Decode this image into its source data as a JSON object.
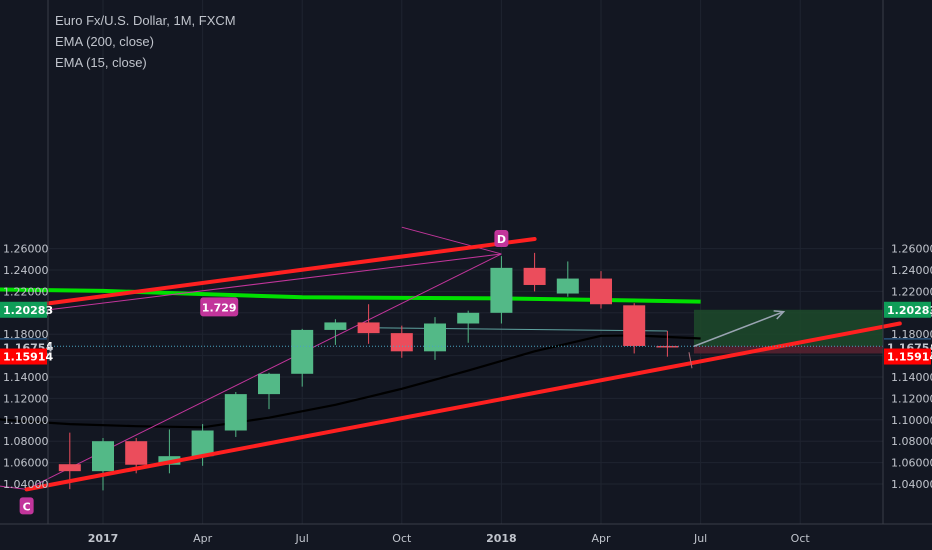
{
  "legend": {
    "title": "Euro Fx/U.S. Dollar, 1M, FXCM",
    "ema200": "EMA (200, close)",
    "ema15": "EMA (15, close)"
  },
  "colors": {
    "background": "#131722",
    "up": "#53b987",
    "down": "#eb4d5c",
    "trendline": "#ff2020",
    "ema200": "#00e000",
    "ema15": "#000000",
    "pattern": "#c2359b",
    "price_current": "#2a5c8a",
    "price_green": "#0f9d58",
    "price_red": "#ff0000"
  },
  "chart_data": {
    "type": "candlestick",
    "y_ticks": [
      "1.04000",
      "1.06000",
      "1.08000",
      "1.10000",
      "1.12000",
      "1.14000",
      "1.16000",
      "1.18000",
      "1.20000",
      "1.22000",
      "1.24000",
      "1.26000"
    ],
    "ylim": [
      1.0,
      1.275
    ],
    "x_ticks": [
      {
        "label": "2017",
        "month": 0,
        "bold": true
      },
      {
        "label": "Apr",
        "month": 3
      },
      {
        "label": "Jul",
        "month": 6
      },
      {
        "label": "Oct",
        "month": 9
      },
      {
        "label": "2018",
        "month": 12,
        "bold": true
      },
      {
        "label": "Apr",
        "month": 15
      },
      {
        "label": "Jul",
        "month": 18
      },
      {
        "label": "Oct",
        "month": 21
      }
    ],
    "candles": [
      {
        "month": -1,
        "open": 1.0585,
        "high": 1.088,
        "low": 1.0352,
        "close": 1.052
      },
      {
        "month": 0,
        "open": 1.052,
        "high": 1.083,
        "low": 1.034,
        "close": 1.08
      },
      {
        "month": 1,
        "open": 1.08,
        "high": 1.083,
        "low": 1.05,
        "close": 1.058
      },
      {
        "month": 2,
        "open": 1.058,
        "high": 1.091,
        "low": 1.05,
        "close": 1.066
      },
      {
        "month": 3,
        "open": 1.066,
        "high": 1.096,
        "low": 1.057,
        "close": 1.09
      },
      {
        "month": 4,
        "open": 1.09,
        "high": 1.126,
        "low": 1.084,
        "close": 1.124
      },
      {
        "month": 5,
        "open": 1.124,
        "high": 1.144,
        "low": 1.11,
        "close": 1.143
      },
      {
        "month": 6,
        "open": 1.143,
        "high": 1.185,
        "low": 1.131,
        "close": 1.184
      },
      {
        "month": 7,
        "open": 1.184,
        "high": 1.194,
        "low": 1.17,
        "close": 1.191
      },
      {
        "month": 8,
        "open": 1.191,
        "high": 1.208,
        "low": 1.171,
        "close": 1.181
      },
      {
        "month": 9,
        "open": 1.181,
        "high": 1.188,
        "low": 1.158,
        "close": 1.164
      },
      {
        "month": 10,
        "open": 1.164,
        "high": 1.196,
        "low": 1.156,
        "close": 1.19
      },
      {
        "month": 11,
        "open": 1.19,
        "high": 1.202,
        "low": 1.172,
        "close": 1.2
      },
      {
        "month": 12,
        "open": 1.2,
        "high": 1.253,
        "low": 1.19,
        "close": 1.242
      },
      {
        "month": 13,
        "open": 1.242,
        "high": 1.256,
        "low": 1.22,
        "close": 1.226
      },
      {
        "month": 14,
        "open": 1.218,
        "high": 1.248,
        "low": 1.215,
        "close": 1.232
      },
      {
        "month": 15,
        "open": 1.232,
        "high": 1.239,
        "low": 1.204,
        "close": 1.208
      },
      {
        "month": 16,
        "open": 1.207,
        "high": 1.209,
        "low": 1.162,
        "close": 1.169
      },
      {
        "month": 17,
        "open": 1.169,
        "high": 1.183,
        "low": 1.159,
        "close": 1.1687
      }
    ],
    "ema200": [
      [
        -5,
        1.2225
      ],
      [
        0,
        1.2205
      ],
      [
        6,
        1.2145
      ],
      [
        12,
        1.2135
      ],
      [
        18,
        1.2105
      ]
    ],
    "ema15": [
      [
        -5,
        1.108
      ],
      [
        -3,
        1.1
      ],
      [
        -1,
        1.096
      ],
      [
        1,
        1.094
      ],
      [
        3,
        1.093
      ],
      [
        5,
        1.102
      ],
      [
        7,
        1.114
      ],
      [
        9,
        1.129
      ],
      [
        11,
        1.146
      ],
      [
        13,
        1.164
      ],
      [
        15,
        1.1785
      ],
      [
        16,
        1.179
      ],
      [
        18,
        1.176
      ]
    ],
    "trendlines": [
      {
        "from": [
          -5,
          1.195
        ],
        "to": [
          13,
          1.269
        ]
      },
      {
        "from": [
          -2.3,
          1.035
        ],
        "to": [
          24,
          1.19
        ]
      }
    ],
    "pattern_lines": [
      {
        "from": [
          -5,
          1.19
        ],
        "to": [
          12,
          1.255
        ]
      },
      {
        "from": [
          -2.3,
          1.035
        ],
        "to": [
          12,
          1.255
        ]
      },
      {
        "from": [
          9,
          1.28
        ],
        "to": [
          12,
          1.255
        ]
      },
      {
        "from": [
          -5,
          1.045
        ],
        "to": [
          -2.3,
          1.035
        ]
      }
    ],
    "pattern_labels": [
      {
        "text": "C",
        "at": [
          -2.3,
          1.035
        ],
        "pos": "below"
      },
      {
        "text": "D",
        "at": [
          12,
          1.255
        ],
        "pos": "above"
      }
    ],
    "ratio_label": {
      "text": "1.729",
      "at": [
        3.5,
        1.206
      ]
    },
    "support_line": {
      "from": [
        8,
        1.186
      ],
      "to": [
        17,
        1.183
      ]
    },
    "position": {
      "start_month": 17.8,
      "end_month": 24,
      "entry": 1.16874,
      "target": 1.20283,
      "stop": 1.162
    },
    "forecast_arrow": {
      "from": [
        17.8,
        1.16874
      ],
      "to": [
        20.5,
        1.201
      ]
    },
    "price_labels": [
      {
        "text": "1.20283",
        "value": 1.20283,
        "style": "green"
      },
      {
        "text": "1.16874",
        "value": 1.16874,
        "style": "current"
      },
      {
        "text": "1.16754",
        "value": 1.16754,
        "style": "plain"
      },
      {
        "text": "1.15914",
        "value": 1.15914,
        "style": "red"
      }
    ]
  }
}
